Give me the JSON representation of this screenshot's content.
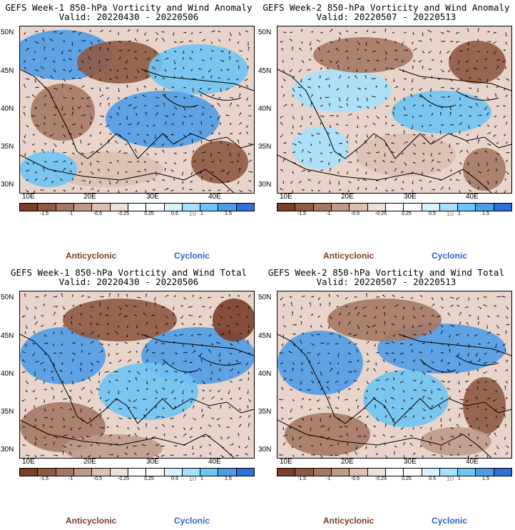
{
  "panels": [
    {
      "line1": "GEFS Week-1 850-hPa Vorticity and Wind Anomaly",
      "line2": "Valid: 20220430 - 20220506"
    },
    {
      "line1": "GEFS Week-2 850-hPa Vorticity and Wind Anomaly",
      "line2": "Valid: 20220507 - 20220513"
    },
    {
      "line1": "GEFS Week-1 850-hPa Vorticity and Wind Total",
      "line2": "Valid: 20220430 - 20220506"
    },
    {
      "line1": "GEFS Week-2 850-hPa Vorticity and Wind Total",
      "line2": "Valid: 20220507 - 20220513"
    }
  ],
  "axes": {
    "lat_labels": [
      "50N",
      "45N",
      "40N",
      "35N",
      "30N"
    ],
    "lon_labels": [
      "10E",
      "20E",
      "30E",
      "40E"
    ]
  },
  "colorbar": {
    "tick_labels": [
      "-1.5",
      "-1",
      "-0.5",
      "-0.25",
      "0.25",
      "0.5",
      "1",
      "1.5"
    ],
    "colors": [
      "#7a3e2a",
      "#8f5a43",
      "#a57863",
      "#c09a89",
      "#dcc0b3",
      "#efe0d8",
      "#ffffff",
      "#ffffff",
      "#d8f3ff",
      "#a6e1fb",
      "#6ec4f3",
      "#4f9ce7",
      "#2f6fd8"
    ],
    "vector_ref": "10"
  },
  "legend": {
    "anticyclonic": "Anticyclonic",
    "cyclonic": "Cyclonic"
  },
  "palette": {
    "anticyclonic_text": "#7b3b22",
    "cyclonic_text": "#2a63c8",
    "coast": "#000000"
  }
}
